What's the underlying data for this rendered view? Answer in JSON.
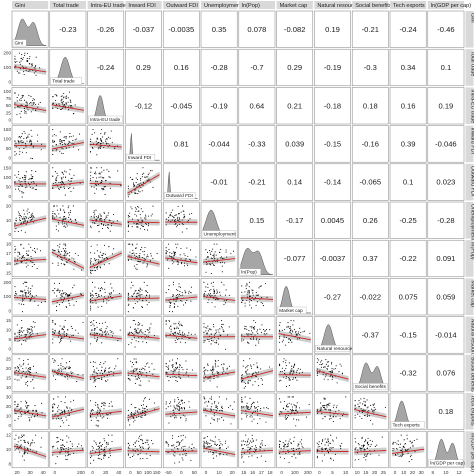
{
  "chart_data": {
    "type": "scatter-matrix",
    "variables": [
      "Gini",
      "Total trade",
      "Intra-EU trade",
      "Inward FDI",
      "Outward FDI",
      "Unemployment",
      "ln(Pop)",
      "Market cap",
      "Natural resources",
      "Social benefits",
      "Tech exports",
      "ln(GDP per cap)"
    ],
    "correlations": [
      [
        "",
        "-0.23",
        "-0.26",
        "-0.037",
        "-0.0035",
        "0.35",
        "0.078",
        "-0.082",
        "0.19",
        "-0.21",
        "-0.24",
        "-0.46"
      ],
      [
        "",
        "",
        "-0.24",
        "0.29",
        "0.16",
        "-0.28",
        "-0.7",
        "0.29",
        "-0.19",
        "-0.3",
        "0.34",
        "0.1"
      ],
      [
        "",
        "",
        "",
        "-0.12",
        "-0.045",
        "-0.19",
        "0.64",
        "0.21",
        "-0.18",
        "0.18",
        "0.16",
        "0.19"
      ],
      [
        "",
        "",
        "",
        "",
        "0.81",
        "-0.044",
        "-0.33",
        "0.039",
        "-0.15",
        "-0.16",
        "0.39",
        "-0.046"
      ],
      [
        "",
        "",
        "",
        "",
        "",
        "-0.01",
        "-0.21",
        "0.14",
        "-0.14",
        "-0.065",
        "0.1",
        "0.023"
      ],
      [
        "",
        "",
        "",
        "",
        "",
        "",
        "0.15",
        "-0.17",
        "0.0045",
        "0.26",
        "-0.25",
        "-0.28"
      ],
      [
        "",
        "",
        "",
        "",
        "",
        "",
        "",
        "-0.077",
        "-0.0037",
        "0.37",
        "-0.22",
        "0.091"
      ],
      [
        "",
        "",
        "",
        "",
        "",
        "",
        "",
        "",
        "-0.27",
        "-0.022",
        "0.075",
        "0.059"
      ],
      [
        "",
        "",
        "",
        "",
        "",
        "",
        "",
        "",
        "",
        "-0.37",
        "-0.15",
        "-0.014"
      ],
      [
        "",
        "",
        "",
        "",
        "",
        "",
        "",
        "",
        "",
        "",
        "-0.32",
        "0.076"
      ],
      [
        "",
        "",
        "",
        "",
        "",
        "",
        "",
        "",
        "",
        "",
        "",
        "0.18"
      ],
      [
        "",
        "",
        "",
        "",
        "",
        "",
        "",
        "",
        "",
        "",
        "",
        ""
      ]
    ],
    "y_ticks": [
      [],
      [
        "0",
        "100",
        "200"
      ],
      [
        "0",
        "25",
        "50",
        "75",
        "100"
      ],
      [
        "0",
        "50",
        "100",
        "150"
      ],
      [
        "0",
        "50",
        "100",
        "150"
      ],
      [
        "0",
        "10",
        "20"
      ],
      [
        "15",
        "16",
        "17",
        "18"
      ],
      [
        "0",
        "100",
        "200"
      ],
      [
        "0",
        "5",
        "10",
        "15"
      ],
      [
        "10",
        "15",
        "20",
        "25"
      ],
      [
        "0",
        "10",
        "20",
        "30"
      ],
      [
        "8",
        "10",
        "12"
      ]
    ],
    "x_ticks": [
      [
        "20",
        "30",
        "40"
      ],
      [
        "0",
        "200"
      ],
      [
        "0",
        "20",
        "40"
      ],
      [
        "0",
        "50",
        "100",
        "150"
      ],
      [
        "-50",
        "0",
        "50"
      ],
      [
        "0",
        "10",
        "20"
      ],
      [
        "15",
        "16",
        "17",
        "18"
      ],
      [
        "0",
        "100",
        "200"
      ],
      [
        "0",
        "5",
        "10"
      ],
      [
        "10",
        "15",
        "20",
        "25"
      ],
      [
        "0",
        "10",
        "20",
        "30"
      ],
      [
        "8",
        "10",
        "12"
      ]
    ],
    "diagonal": "density",
    "lower_panels": "scatter with red linear fit and grey confidence band",
    "colors": {
      "points": "#000000",
      "fit_line": "#cc2222",
      "band": "#bdbdbd",
      "density_fill": "#a6a6a6",
      "panel_border": "#7f7f7f",
      "strip_fill": "#d9d9d9"
    }
  }
}
